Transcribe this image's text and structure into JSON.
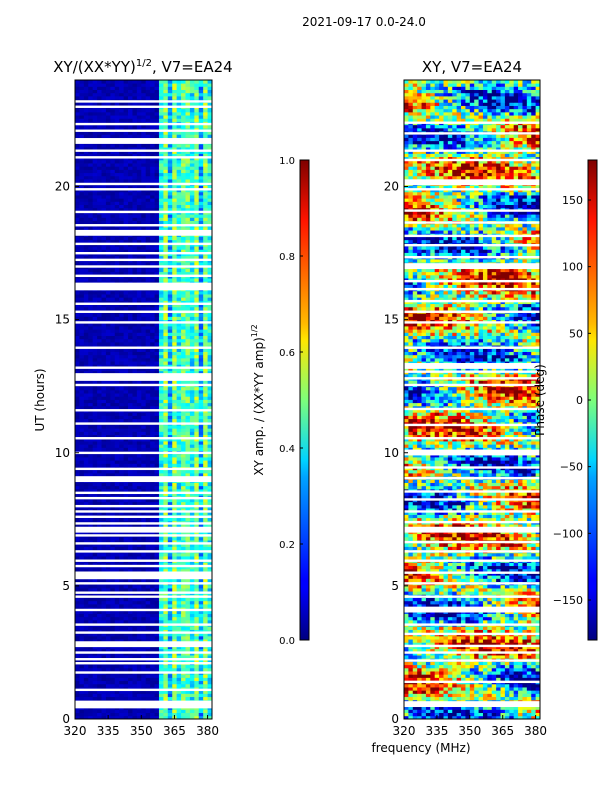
{
  "figure_title": "2021-09-17 0.0-24.0",
  "shared_xlabel": "frequency (MHz)",
  "chart_data": [
    {
      "type": "heatmap",
      "title": "XY/(XX*YY)",
      "title_exponent": "1/2",
      "title_suffix": ", V7=EA24",
      "xlabel": "",
      "ylabel": "UT (hours)",
      "xlim": [
        320,
        382
      ],
      "ylim": [
        0,
        24
      ],
      "xticks": [
        320,
        335,
        350,
        365,
        380
      ],
      "yticks": [
        0,
        5,
        10,
        15,
        20
      ],
      "colorbar": {
        "label": "XY amp. / (XX*YY amp)",
        "label_exponent": "1/2",
        "range": [
          0.0,
          1.0
        ],
        "ticks": [
          "0.0",
          "0.2",
          "0.4",
          "0.6",
          "0.8",
          "1.0"
        ],
        "colormap": "jet"
      },
      "bright_band_MHz": [
        359,
        382
      ],
      "blank_rows_UT": [
        0.4,
        0.6,
        1.05,
        1.7,
        2.05,
        2.2,
        2.45,
        2.7,
        3.2,
        3.5,
        4.05,
        4.55,
        4.7,
        5.05,
        5.25,
        5.45,
        5.7,
        5.9,
        6.25,
        6.55,
        6.85,
        7.0,
        7.3,
        7.55,
        7.75,
        7.95,
        8.25,
        8.45,
        8.9,
        9.35,
        9.95,
        10.5,
        11.05,
        11.55,
        12.5,
        12.7,
        12.9,
        13.15,
        13.9,
        14.85,
        15.25,
        15.55,
        16.1,
        16.3,
        16.6,
        16.95,
        17.2,
        17.45,
        17.8,
        18.15,
        18.5,
        19.0,
        19.85,
        20.05,
        21.05,
        21.3,
        21.6,
        22.05,
        22.3,
        22.95,
        23.15
      ]
    },
    {
      "type": "heatmap",
      "title": "XY, V7=EA24",
      "xlabel": "frequency (MHz)",
      "ylabel": "",
      "xlim": [
        320,
        382
      ],
      "ylim": [
        0,
        24
      ],
      "xticks": [
        320,
        335,
        350,
        365,
        380
      ],
      "yticks": [
        0,
        5,
        10,
        15,
        20
      ],
      "colorbar": {
        "label": "Phase (deg)",
        "range": [
          -180,
          180
        ],
        "ticks": [
          "−150",
          "−100",
          "−50",
          "0",
          "50",
          "100",
          "150"
        ],
        "colormap": "jet"
      },
      "blank_rows_UT": [
        0.45,
        1.35,
        2.15,
        2.45,
        2.7,
        3.15,
        3.5,
        4.0,
        4.55,
        5.05,
        5.45,
        5.9,
        6.25,
        6.6,
        7.0,
        7.35,
        7.75,
        8.2,
        8.5,
        9.0,
        9.4,
        9.9,
        10.5,
        11.0,
        11.6,
        12.5,
        12.75,
        13.0,
        13.15,
        13.9,
        14.85,
        15.25,
        15.65,
        16.1,
        16.4,
        16.9,
        17.3,
        17.75,
        18.1,
        18.6,
        19.05,
        19.85,
        20.05,
        20.95,
        21.3,
        21.95,
        22.35
      ]
    }
  ]
}
